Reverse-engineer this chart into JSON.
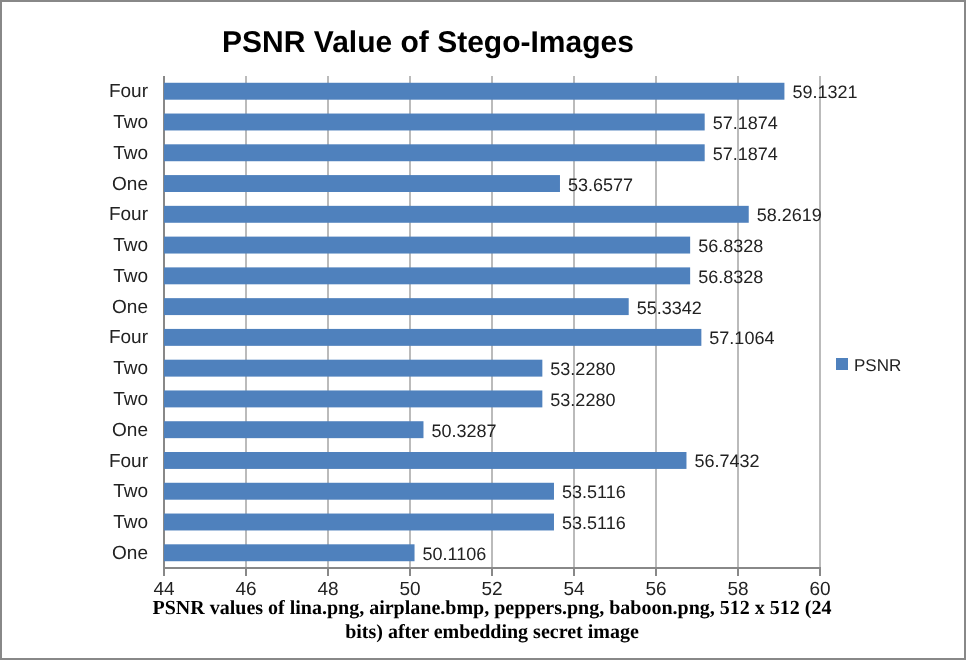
{
  "chart_data": {
    "type": "bar",
    "orientation": "horizontal",
    "title": "PSNR Value of Stego-Images",
    "xlabel": "PSNR values of lina.png, airplane.bmp, peppers.png, baboon.png,  512 x 512 (24 bits) after embedding secret image",
    "categories": [
      "Four",
      "Two",
      "Two",
      "One",
      "Four",
      "Two",
      "Two",
      "One",
      "Four",
      "Two",
      "Two",
      "One",
      "Four",
      "Two",
      "Two",
      "One"
    ],
    "series": [
      {
        "name": "PSNR",
        "color": "#4f81bd",
        "values": [
          59.1321,
          57.1874,
          57.1874,
          53.6577,
          58.2619,
          56.8328,
          56.8328,
          55.3342,
          57.1064,
          53.228,
          53.228,
          50.3287,
          56.7432,
          53.5116,
          53.5116,
          50.1106
        ],
        "value_labels": [
          "59.1321",
          "57.1874",
          "57.1874",
          "53.6577",
          "58.2619",
          "56.8328",
          "56.8328",
          "55.3342",
          "57.1064",
          "53.2280",
          "53.2280",
          "50.3287",
          "56.7432",
          "53.5116",
          "53.5116",
          "50.1106"
        ]
      }
    ],
    "xlim": [
      44,
      60
    ],
    "xticks": [
      44,
      46,
      48,
      50,
      52,
      54,
      56,
      58,
      60
    ],
    "grid": "x",
    "legend": "right"
  }
}
